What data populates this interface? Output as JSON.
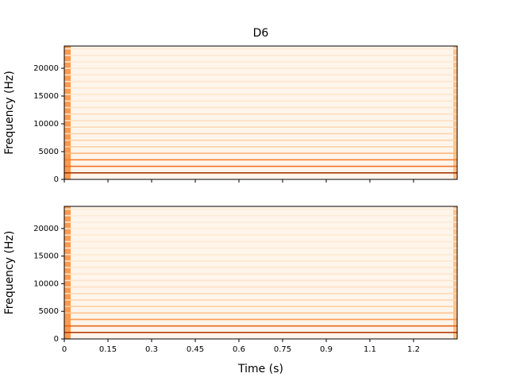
{
  "chart_data": [
    {
      "type": "spectrogram",
      "title": "D6",
      "ylabel": "Frequency (Hz)",
      "xlim": [
        0,
        1.35
      ],
      "ylim": [
        0,
        24000
      ],
      "yticks": [
        0,
        5000,
        10000,
        15000,
        20000
      ],
      "harmonics": [
        1175,
        2350,
        3525,
        4700,
        5875,
        7050,
        8225,
        9400,
        10575,
        11750,
        12925,
        14100,
        15275,
        16450,
        17625,
        18800,
        19975,
        21150,
        22325,
        23500
      ],
      "levels": [
        0.9,
        0.6,
        0.55,
        0.35,
        0.25,
        0.22,
        0.2,
        0.18,
        0.15,
        0.15,
        0.12,
        0.12,
        0.12,
        0.1,
        0.1,
        0.1,
        0.1,
        0.08,
        0.08,
        0.08
      ],
      "colormap": [
        "#fff5eb",
        "#fdd0a2",
        "#fd8d3c",
        "#d94801",
        "#7f2704"
      ]
    },
    {
      "type": "spectrogram",
      "ylabel": "Frequency (Hz)",
      "xlabel": "Time (s)",
      "xlim": [
        0,
        1.35
      ],
      "ylim": [
        0,
        24000
      ],
      "yticks": [
        0,
        5000,
        10000,
        15000,
        20000
      ],
      "xticks": [
        0,
        0.15,
        0.3,
        0.45,
        0.6,
        0.75,
        0.9,
        {
          "value": 1.05,
          "label": "1.1"
        },
        1.2
      ],
      "harmonics": [
        1175,
        2350,
        3525,
        4700,
        5875,
        7050,
        8225,
        9400,
        10575,
        11750,
        12925,
        14100,
        15275,
        16450,
        17625,
        18800,
        19975,
        21150,
        22325,
        23500
      ],
      "levels": [
        0.85,
        0.65,
        0.45,
        0.3,
        0.25,
        0.2,
        0.18,
        0.15,
        0.12,
        0.12,
        0.1,
        0.1,
        0.1,
        0.08,
        0.08,
        0.08,
        0.08,
        0.07,
        0.07,
        0.07
      ],
      "colormap": [
        "#fff5eb",
        "#fdd0a2",
        "#fd8d3c",
        "#d94801",
        "#7f2704"
      ]
    }
  ]
}
